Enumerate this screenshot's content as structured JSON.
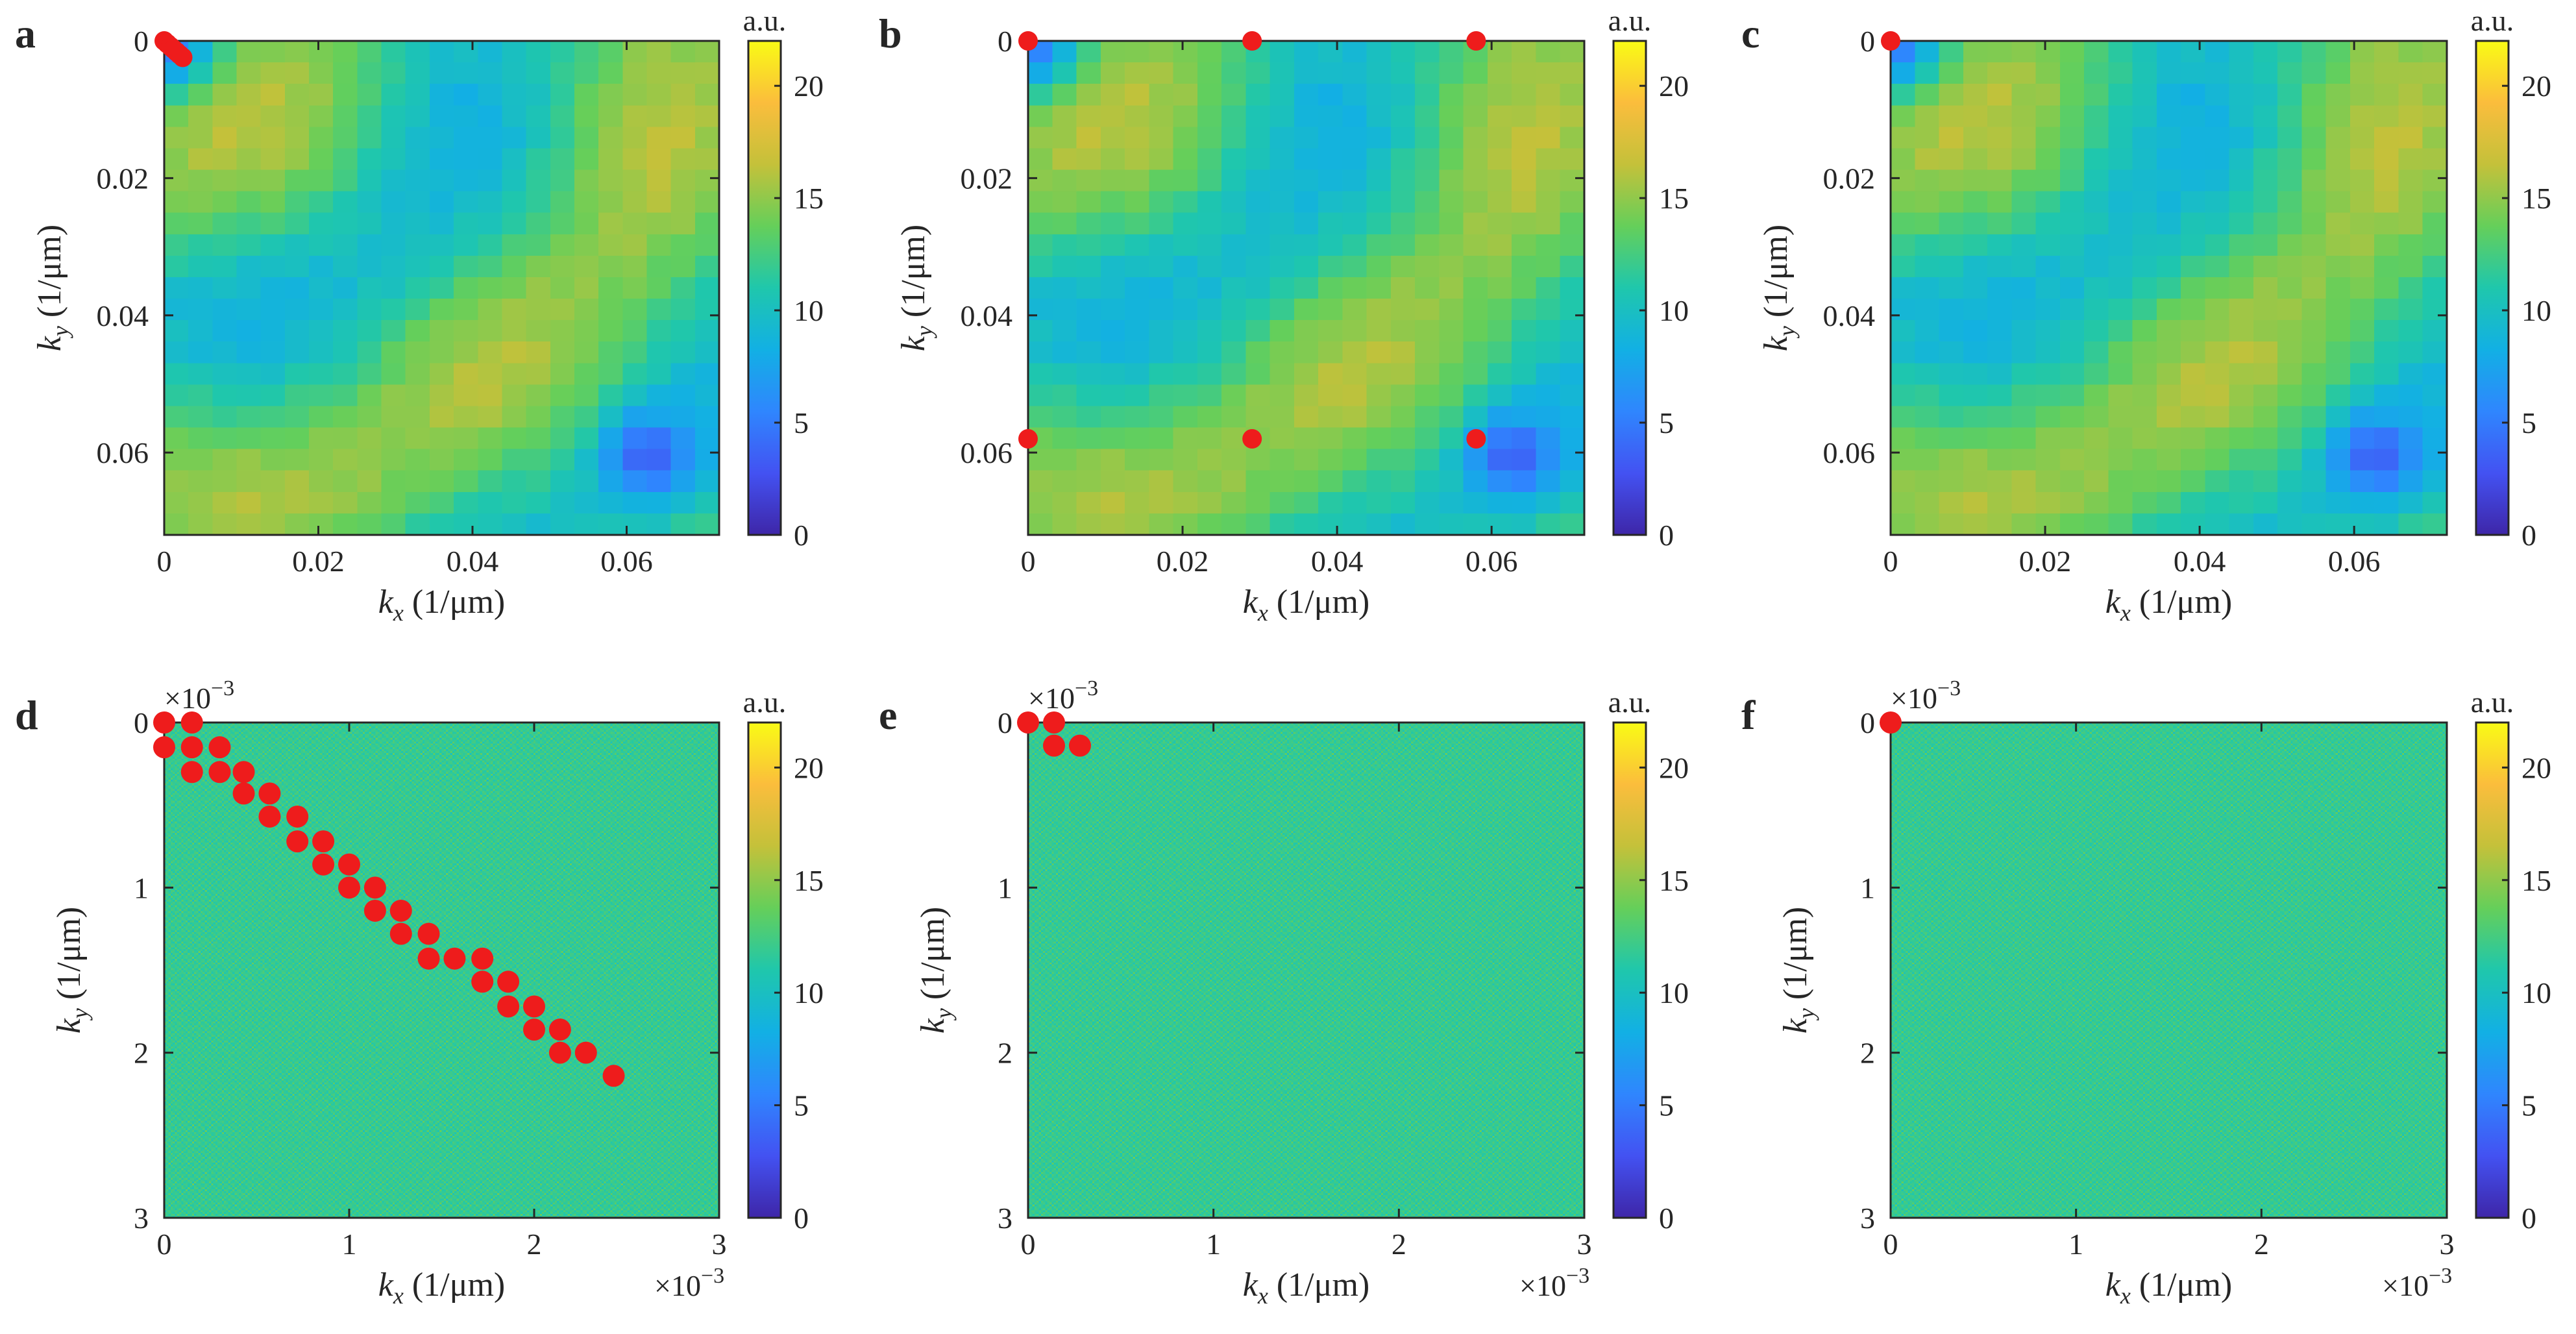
{
  "colorbar": {
    "label": "a.u.",
    "ticks": [
      "0",
      "5",
      "10",
      "15",
      "20"
    ],
    "range": [
      0,
      22
    ],
    "colormap": [
      "#3e26a8",
      "#4352f2",
      "#2f86fe",
      "#12b0e4",
      "#1fc7ac",
      "#65cf5a",
      "#c4c13a",
      "#fbbd3c",
      "#f9fb15"
    ]
  },
  "chart_data": [
    {
      "panel": "a",
      "type": "heatmap",
      "pattern": "diagonal-fine",
      "xlabel_main": "k",
      "xlabel_sub": "x",
      "xlabel_unit": " (1/μm)",
      "ylabel_main": "k",
      "ylabel_sub": "y",
      "ylabel_unit": " (1/μm)",
      "xlim": [
        0,
        0.072
      ],
      "ylim": [
        0,
        0.072
      ],
      "xticks": [
        0,
        0.02,
        0.04,
        0.06
      ],
      "xtick_labels": [
        "0",
        "0.02",
        "0.04",
        "0.06"
      ],
      "yticks": [
        0,
        0.02,
        0.04,
        0.06
      ],
      "ytick_labels": [
        "0",
        "0.02",
        "0.04",
        "0.06"
      ],
      "multiplier": "",
      "points": [
        [
          0,
          0
        ],
        [
          0.0004,
          0.0004
        ],
        [
          0.0008,
          0.0008
        ],
        [
          0.0012,
          0.0012
        ],
        [
          0.0016,
          0.0016
        ],
        [
          0.002,
          0.002
        ],
        [
          0.0024,
          0.0024
        ]
      ]
    },
    {
      "panel": "b",
      "type": "heatmap",
      "pattern": "checker-fine",
      "xlabel_main": "k",
      "xlabel_sub": "x",
      "xlabel_unit": " (1/μm)",
      "ylabel_main": "k",
      "ylabel_sub": "y",
      "ylabel_unit": " (1/μm)",
      "xlim": [
        0,
        0.072
      ],
      "ylim": [
        0,
        0.072
      ],
      "xticks": [
        0,
        0.02,
        0.04,
        0.06
      ],
      "xtick_labels": [
        "0",
        "0.02",
        "0.04",
        "0.06"
      ],
      "yticks": [
        0,
        0.02,
        0.04,
        0.06
      ],
      "ytick_labels": [
        "0",
        "0.02",
        "0.04",
        "0.06"
      ],
      "multiplier": "",
      "points": [
        [
          0,
          0
        ],
        [
          0.029,
          0
        ],
        [
          0.058,
          0
        ],
        [
          0,
          0.058
        ],
        [
          0.029,
          0.058
        ],
        [
          0.058,
          0.058
        ]
      ]
    },
    {
      "panel": "c",
      "type": "heatmap",
      "pattern": "ring-fine",
      "xlabel_main": "k",
      "xlabel_sub": "x",
      "xlabel_unit": " (1/μm)",
      "ylabel_main": "k",
      "ylabel_sub": "y",
      "ylabel_unit": " (1/μm)",
      "xlim": [
        0,
        0.072
      ],
      "ylim": [
        0,
        0.072
      ],
      "xticks": [
        0,
        0.02,
        0.04,
        0.06
      ],
      "xtick_labels": [
        "0",
        "0.02",
        "0.04",
        "0.06"
      ],
      "yticks": [
        0,
        0.02,
        0.04,
        0.06
      ],
      "ytick_labels": [
        "0",
        "0.02",
        "0.04",
        "0.06"
      ],
      "multiplier": "",
      "points": [
        [
          0,
          0
        ]
      ]
    },
    {
      "panel": "d",
      "type": "heatmap",
      "pattern": "diagonal-coarse",
      "xlabel_main": "k",
      "xlabel_sub": "x",
      "xlabel_unit": " (1/μm)",
      "ylabel_main": "k",
      "ylabel_sub": "y",
      "ylabel_unit": " (1/μm)",
      "xlim": [
        0,
        3
      ],
      "ylim": [
        0,
        3
      ],
      "xticks": [
        0,
        1,
        2,
        3
      ],
      "xtick_labels": [
        "0",
        "1",
        "2",
        "3"
      ],
      "yticks": [
        0,
        1,
        2,
        3
      ],
      "ytick_labels": [
        "0",
        "1",
        "2",
        "3"
      ],
      "multiplier": "×10",
      "multiplier_exp": "−3",
      "points": [
        [
          0,
          0
        ],
        [
          0.15,
          0
        ],
        [
          0,
          0.15
        ],
        [
          0.15,
          0.15
        ],
        [
          0.3,
          0.15
        ],
        [
          0.15,
          0.3
        ],
        [
          0.3,
          0.3
        ],
        [
          0.43,
          0.3
        ],
        [
          0.43,
          0.43
        ],
        [
          0.57,
          0.43
        ],
        [
          0.57,
          0.57
        ],
        [
          0.72,
          0.57
        ],
        [
          0.72,
          0.72
        ],
        [
          0.86,
          0.72
        ],
        [
          0.86,
          0.86
        ],
        [
          1.0,
          0.86
        ],
        [
          1.0,
          1.0
        ],
        [
          1.14,
          1.0
        ],
        [
          1.14,
          1.14
        ],
        [
          1.28,
          1.14
        ],
        [
          1.28,
          1.28
        ],
        [
          1.43,
          1.28
        ],
        [
          1.43,
          1.43
        ],
        [
          1.57,
          1.43
        ],
        [
          1.72,
          1.43
        ],
        [
          1.72,
          1.57
        ],
        [
          1.86,
          1.57
        ],
        [
          1.86,
          1.72
        ],
        [
          2.0,
          1.72
        ],
        [
          2.0,
          1.86
        ],
        [
          2.14,
          1.86
        ],
        [
          2.14,
          2.0
        ],
        [
          2.28,
          2.0
        ],
        [
          2.43,
          2.14
        ]
      ]
    },
    {
      "panel": "e",
      "type": "heatmap",
      "pattern": "diagonal-bands",
      "xlabel_main": "k",
      "xlabel_sub": "x",
      "xlabel_unit": " (1/μm)",
      "ylabel_main": "k",
      "ylabel_sub": "y",
      "ylabel_unit": " (1/μm)",
      "xlim": [
        0,
        3
      ],
      "ylim": [
        0,
        3
      ],
      "xticks": [
        0,
        1,
        2,
        3
      ],
      "xtick_labels": [
        "0",
        "1",
        "2",
        "3"
      ],
      "yticks": [
        0,
        1,
        2,
        3
      ],
      "ytick_labels": [
        "0",
        "1",
        "2",
        "3"
      ],
      "multiplier": "×10",
      "multiplier_exp": "−3",
      "points": [
        [
          0,
          0
        ],
        [
          0.14,
          0
        ],
        [
          0.14,
          0.14
        ],
        [
          0.28,
          0.14
        ]
      ]
    },
    {
      "panel": "f",
      "type": "heatmap",
      "pattern": "rings-coarse",
      "xlabel_main": "k",
      "xlabel_sub": "x",
      "xlabel_unit": " (1/μm)",
      "ylabel_main": "k",
      "ylabel_sub": "y",
      "ylabel_unit": " (1/μm)",
      "xlim": [
        0,
        3
      ],
      "ylim": [
        0,
        3
      ],
      "xticks": [
        0,
        1,
        2,
        3
      ],
      "xtick_labels": [
        "0",
        "1",
        "2",
        "3"
      ],
      "yticks": [
        0,
        1,
        2,
        3
      ],
      "ytick_labels": [
        "0",
        "1",
        "2",
        "3"
      ],
      "multiplier": "×10",
      "multiplier_exp": "−3",
      "points": [
        [
          0,
          0
        ]
      ]
    }
  ]
}
